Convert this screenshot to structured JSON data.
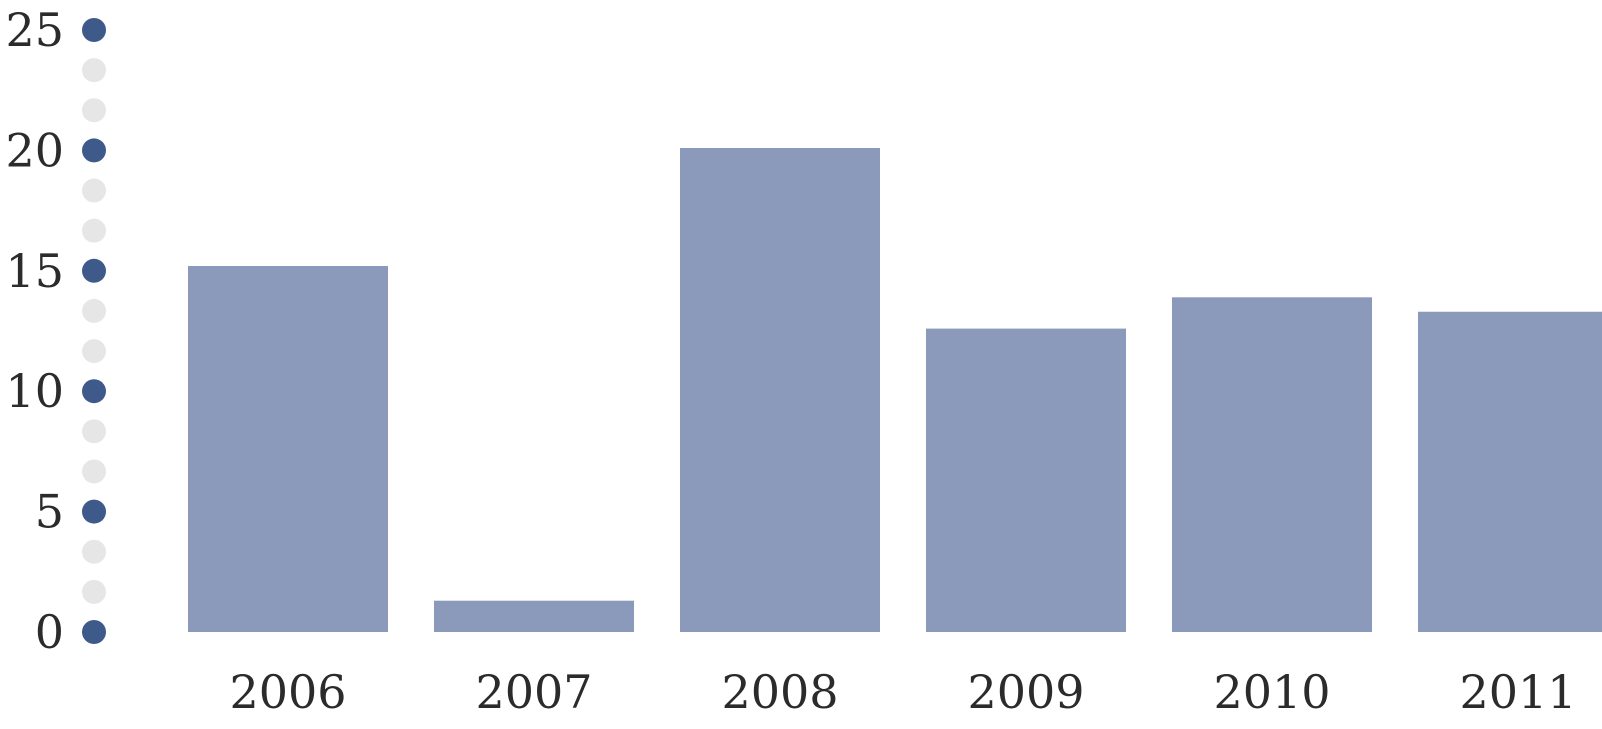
{
  "chart_data": {
    "type": "bar",
    "title": "",
    "xlabel": "",
    "ylabel": "",
    "categories": [
      "2006",
      "2007",
      "2008",
      "2009",
      "2010",
      "2011"
    ],
    "values": [
      15.2,
      1.3,
      20.1,
      12.6,
      13.9,
      13.3
    ],
    "ylim": [
      0,
      25
    ],
    "yticks": [
      0,
      5,
      10,
      15,
      20,
      25
    ],
    "ytick_labels": [
      "0",
      "5",
      "10",
      "15",
      "20",
      "25"
    ],
    "grid": false,
    "legend": "none",
    "bar_color": "#8b9aba",
    "axis_dot_major_color": "#3d5a8a",
    "axis_dot_minor_color": "#e6e6e6"
  }
}
